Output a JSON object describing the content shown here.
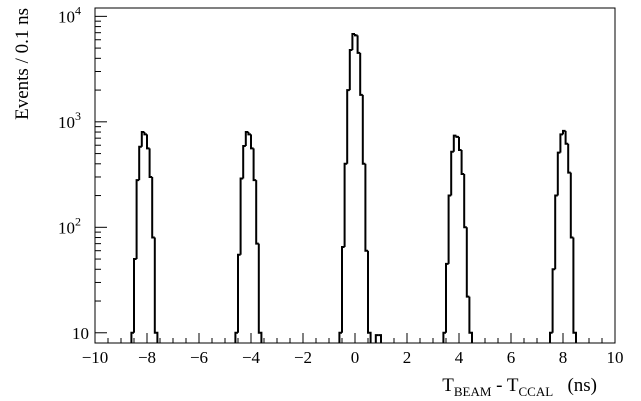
{
  "chart_data": {
    "type": "histogram",
    "title": "",
    "xlabel": {
      "parts": [
        {
          "text": "T",
          "sub": false
        },
        {
          "text": "BEAM",
          "sub": true
        },
        {
          "text": " - T",
          "sub": false
        },
        {
          "text": "CCAL",
          "sub": true
        },
        {
          "text": "   (ns)",
          "sub": false
        }
      ]
    },
    "ylabel": "Events / 0.1 ns",
    "xlim": [
      -10,
      10
    ],
    "ylim": [
      8,
      12000
    ],
    "yscale": "log",
    "bin_width": 0.1,
    "grid": false,
    "legend": "none",
    "x_ticks": [
      "−10",
      "−8",
      "−6",
      "−4",
      "−2",
      "0",
      "2",
      "4",
      "6",
      "8",
      "10"
    ],
    "x_tick_values": [
      -10,
      -8,
      -6,
      -4,
      -2,
      0,
      2,
      4,
      6,
      8,
      10
    ],
    "y_ticks": [
      {
        "value": 10,
        "base": "10",
        "exp": ""
      },
      {
        "value": 100,
        "base": "10",
        "exp": "2"
      },
      {
        "value": 1000,
        "base": "10",
        "exp": "3"
      },
      {
        "value": 10000,
        "base": "10",
        "exp": "4"
      }
    ],
    "series": [
      {
        "line_color": "#000000",
        "bins": [
          {
            "x0": -8.6,
            "y": 10
          },
          {
            "x0": -8.5,
            "y": 50
          },
          {
            "x0": -8.4,
            "y": 280
          },
          {
            "x0": -8.3,
            "y": 580
          },
          {
            "x0": -8.2,
            "y": 800
          },
          {
            "x0": -8.1,
            "y": 760
          },
          {
            "x0": -8.0,
            "y": 560
          },
          {
            "x0": -7.9,
            "y": 300
          },
          {
            "x0": -7.8,
            "y": 80
          },
          {
            "x0": -7.7,
            "y": 10
          },
          {
            "x0": -4.6,
            "y": 10
          },
          {
            "x0": -4.5,
            "y": 55
          },
          {
            "x0": -4.4,
            "y": 290
          },
          {
            "x0": -4.3,
            "y": 590
          },
          {
            "x0": -4.2,
            "y": 800
          },
          {
            "x0": -4.1,
            "y": 760
          },
          {
            "x0": -4.0,
            "y": 560
          },
          {
            "x0": -3.9,
            "y": 280
          },
          {
            "x0": -3.8,
            "y": 70
          },
          {
            "x0": -3.7,
            "y": 10
          },
          {
            "x0": -0.6,
            "y": 10
          },
          {
            "x0": -0.5,
            "y": 65
          },
          {
            "x0": -0.4,
            "y": 400
          },
          {
            "x0": -0.3,
            "y": 2000
          },
          {
            "x0": -0.2,
            "y": 4800
          },
          {
            "x0": -0.1,
            "y": 6800
          },
          {
            "x0": 0.0,
            "y": 6600
          },
          {
            "x0": 0.1,
            "y": 4500
          },
          {
            "x0": 0.2,
            "y": 1800
          },
          {
            "x0": 0.3,
            "y": 400
          },
          {
            "x0": 0.4,
            "y": 60
          },
          {
            "x0": 0.5,
            "y": 10
          },
          {
            "x0": 0.8,
            "y": 9.5
          },
          {
            "x0": 0.9,
            "y": 9.5
          },
          {
            "x0": 3.4,
            "y": 10
          },
          {
            "x0": 3.5,
            "y": 45
          },
          {
            "x0": 3.6,
            "y": 200
          },
          {
            "x0": 3.7,
            "y": 520
          },
          {
            "x0": 3.8,
            "y": 740
          },
          {
            "x0": 3.9,
            "y": 720
          },
          {
            "x0": 4.0,
            "y": 540
          },
          {
            "x0": 4.1,
            "y": 320
          },
          {
            "x0": 4.2,
            "y": 100
          },
          {
            "x0": 4.3,
            "y": 22
          },
          {
            "x0": 4.4,
            "y": 10
          },
          {
            "x0": 7.5,
            "y": 10
          },
          {
            "x0": 7.6,
            "y": 40
          },
          {
            "x0": 7.7,
            "y": 200
          },
          {
            "x0": 7.8,
            "y": 510
          },
          {
            "x0": 7.9,
            "y": 760
          },
          {
            "x0": 8.0,
            "y": 820
          },
          {
            "x0": 8.1,
            "y": 620
          },
          {
            "x0": 8.2,
            "y": 330
          },
          {
            "x0": 8.3,
            "y": 80
          },
          {
            "x0": 8.4,
            "y": 10
          }
        ]
      }
    ]
  }
}
